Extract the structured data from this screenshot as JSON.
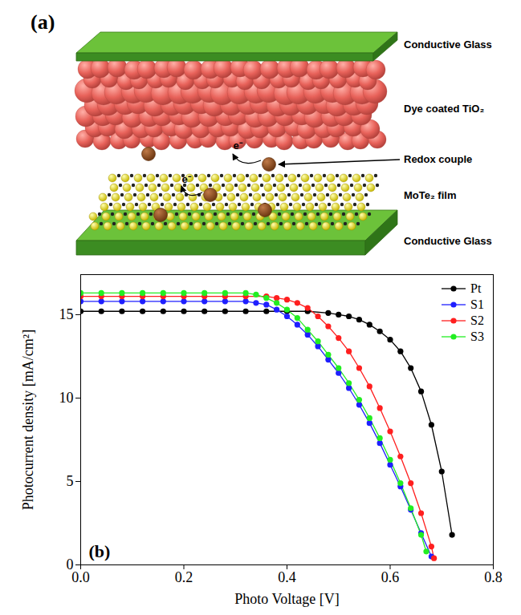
{
  "diagram": {
    "panel_label": "(a)",
    "layers": [
      {
        "label": "Conductive Glass"
      },
      {
        "label": "Dye coated TiO₂"
      },
      {
        "label": "Redox couple"
      },
      {
        "label": "MoTe₂ film"
      },
      {
        "label": "Conductive Glass"
      }
    ],
    "electrons": [
      "e⁻",
      "e⁻"
    ]
  },
  "chart_data": {
    "type": "line",
    "panel_label": "(b)",
    "x_label": "Photo Voltage [V]",
    "y_label": "Photocurrent density [mA/cm²]",
    "xlim": [
      0,
      0.8
    ],
    "xticks": [
      {
        "value": 0,
        "label": "0.0"
      },
      0.2,
      0.4,
      0.6,
      0.8
    ],
    "ylim": [
      0,
      17.4
    ],
    "yticks": [
      0,
      5,
      10,
      15
    ],
    "legend": "top-right",
    "marker": "circle",
    "series": [
      {
        "name": "Pt",
        "color": "#000000",
        "x": [
          0,
          0.04,
          0.08,
          0.12,
          0.16,
          0.2,
          0.24,
          0.28,
          0.32,
          0.36,
          0.4,
          0.44,
          0.48,
          0.5,
          0.52,
          0.54,
          0.56,
          0.58,
          0.6,
          0.62,
          0.64,
          0.66,
          0.68,
          0.7,
          0.72
        ],
        "values": [
          15.2,
          15.2,
          15.2,
          15.2,
          15.2,
          15.2,
          15.2,
          15.2,
          15.2,
          15.2,
          15.2,
          15.2,
          15.1,
          15.0,
          14.9,
          14.7,
          14.4,
          14.0,
          13.5,
          12.8,
          11.8,
          10.4,
          8.4,
          5.6,
          1.8
        ]
      },
      {
        "name": "S1",
        "color": "#1f1fff",
        "x": [
          0,
          0.04,
          0.08,
          0.12,
          0.16,
          0.2,
          0.24,
          0.28,
          0.32,
          0.34,
          0.36,
          0.38,
          0.4,
          0.42,
          0.44,
          0.46,
          0.48,
          0.5,
          0.52,
          0.54,
          0.56,
          0.58,
          0.6,
          0.62,
          0.64,
          0.66,
          0.68
        ],
        "values": [
          15.8,
          15.8,
          15.8,
          15.8,
          15.8,
          15.8,
          15.8,
          15.8,
          15.8,
          15.7,
          15.6,
          15.3,
          14.9,
          14.4,
          13.8,
          13.1,
          12.3,
          11.5,
          10.6,
          9.6,
          8.5,
          7.3,
          6.0,
          4.7,
          3.3,
          1.9,
          0.5
        ]
      },
      {
        "name": "S2",
        "color": "#ff1f1f",
        "x": [
          0,
          0.04,
          0.08,
          0.12,
          0.16,
          0.2,
          0.24,
          0.28,
          0.32,
          0.36,
          0.38,
          0.4,
          0.42,
          0.44,
          0.46,
          0.48,
          0.5,
          0.52,
          0.54,
          0.56,
          0.58,
          0.6,
          0.62,
          0.64,
          0.66,
          0.68,
          0.685
        ],
        "values": [
          16.1,
          16.1,
          16.1,
          16.1,
          16.1,
          16.1,
          16.1,
          16.1,
          16.1,
          16.1,
          16.0,
          15.9,
          15.7,
          15.4,
          14.9,
          14.3,
          13.6,
          12.8,
          11.8,
          10.7,
          9.4,
          8.0,
          6.5,
          4.9,
          3.1,
          1.1,
          0.4
        ]
      },
      {
        "name": "S3",
        "color": "#22ee22",
        "x": [
          0,
          0.04,
          0.08,
          0.12,
          0.16,
          0.2,
          0.24,
          0.28,
          0.32,
          0.34,
          0.36,
          0.38,
          0.4,
          0.42,
          0.44,
          0.46,
          0.48,
          0.5,
          0.52,
          0.54,
          0.56,
          0.58,
          0.6,
          0.62,
          0.64,
          0.66,
          0.67
        ],
        "values": [
          16.3,
          16.3,
          16.3,
          16.3,
          16.3,
          16.3,
          16.3,
          16.3,
          16.3,
          16.2,
          16.0,
          15.7,
          15.3,
          14.8,
          14.1,
          13.4,
          12.6,
          11.8,
          10.9,
          9.9,
          8.8,
          7.6,
          6.3,
          4.9,
          3.4,
          1.8,
          0.8
        ]
      }
    ]
  }
}
